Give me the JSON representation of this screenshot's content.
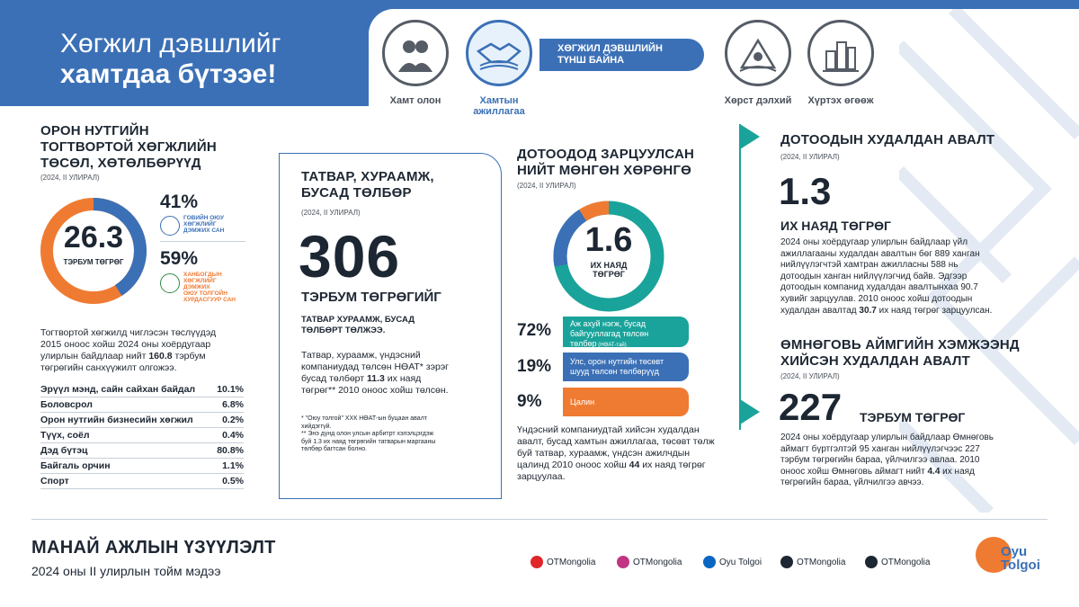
{
  "headline": {
    "line1": "Хөгжил дэвшлийг",
    "line2": "хамтдаа бүтээе!"
  },
  "pillars": {
    "items": [
      {
        "label": "Хамт олон",
        "icon": "people-icon"
      },
      {
        "label": "Хамтын ажиллагаа",
        "icon": "handshake-icon"
      },
      {
        "label": "Хөрст дэлхий",
        "icon": "nature-icon"
      },
      {
        "label": "Хүртэх өгөөж",
        "icon": "city-icon"
      }
    ],
    "active_label_line1": "Хамтын",
    "active_label_line2": "ажиллагаа",
    "banner_line1": "ХӨГЖИЛ ДЭВШЛИЙН",
    "banner_line2": "ТҮНШ БАЙНА"
  },
  "projects": {
    "title_line1": "ОРОН НУТГИЙН",
    "title_line2": "ТОГТВОРТОЙ ХӨГЖЛИЙН",
    "title_line3": "ТӨСӨЛ, ХӨТӨЛБӨРҮҮД",
    "period": "(2024, II УЛИРАЛ)",
    "total_value": "26.3",
    "total_unit": "ТЭРБУМ ТӨГРӨГ",
    "share_1_pct": "41%",
    "share_1_value": 41,
    "share_1_label_line1": "ГОВИЙН ОЮУ",
    "share_1_label_line2": "ХӨГЖЛИЙГ",
    "share_1_label_line3": "ДЭМЖИХ САН",
    "share_2_pct": "59%",
    "share_2_value": 59,
    "share_2_label_line1": "ХАНБОГДЫН",
    "share_2_label_line2": "ХӨГЖЛИЙГ",
    "share_2_label_line3": "ДЭМЖИХ",
    "share_2_label_line4": "ОЮУ ТОЛГОЙН",
    "share_2_label_line5": "ХУРДАСГУУР САН",
    "desc_line1": "Тогтвортой хөгжилд чиглэсэн төслүүдэд",
    "desc_line2": "2015 оноос хойш 2024 оны хоёрдугаар",
    "desc_line3_pre": "улирлын байдлаар нийт ",
    "desc_line3_bold": "160.8",
    "desc_line3_post": " тэрбум",
    "desc_line4": "төгрөгийн санхүүжилт олгожээ.",
    "rows": [
      {
        "name": "Эрүүл мэнд, сайн сайхан байдал",
        "value": "10.1%"
      },
      {
        "name": "Боловсрол",
        "value": "6.8%"
      },
      {
        "name": "Орон нутгийн бизнесийн хөгжил",
        "value": "0.2%"
      },
      {
        "name": "Түүх, соёл",
        "value": "0.4%"
      },
      {
        "name": "Дэд бүтэц",
        "value": "80.8%"
      },
      {
        "name": "Байгаль орчин",
        "value": "1.1%"
      },
      {
        "name": "Спорт",
        "value": "0.5%"
      }
    ]
  },
  "taxes": {
    "title_line1": "ТАТВАР, ХУРААМЖ,",
    "title_line2": "БУСАД ТӨЛБӨР",
    "period": "(2024, II УЛИРАЛ)",
    "value": "306",
    "unit": "ТЭРБУМ ТӨГРӨГИЙГ",
    "sub_line1": "ТАТВАР ХУРААМЖ, БУСАД",
    "sub_line2": "ТӨЛБӨРТ ТӨЛЖЭЭ.",
    "desc_line1": "Татвар, хураамж, үндэсний",
    "desc_line2": "компаниудад төлсөн НӨАТ* зэрэг",
    "desc_line3_pre": "бусад төлбөрт ",
    "desc_line3_bold": "11.3",
    "desc_line3_post": " их наяд",
    "desc_line4": "төгрөг** 2010 оноос хойш төлсөн.",
    "note1_line1": "* \"Оюу толгой\" ХХК НӨАТ-ын буцаан авалт",
    "note1_line2": "хийдэггүй.",
    "note2_line1": "** Энэ дүнд олон улсын арбитрт хэлэлцэгдэж",
    "note2_line2": "буй 1.3 их наяд төгрөгийн татварын маргааны",
    "note2_line3": "төлбөр багтсан болно."
  },
  "domestic_spend": {
    "title_line1": "ДОТООДОД ЗАРЦУУЛСАН",
    "title_line2": "НИЙТ МӨНГӨН ХӨРӨНГӨ",
    "period": "(2024, II УЛИРАЛ)",
    "value": "1.6",
    "unit_line1": "ИХ НАЯД",
    "unit_line2": "ТӨГРӨГ",
    "bars": [
      {
        "pct": "72%",
        "value": 72,
        "line1": "Аж ахуй нэгж, бусад",
        "line2": "байгууллагад төлсөн",
        "line3": "төлбөр",
        "line3_small": " (НӨАТ-тай)",
        "color": "#1aa39a"
      },
      {
        "pct": "19%",
        "value": 19,
        "line1": "Улс, орон нутгийн төсөвт",
        "line2": "шууд төлсөн төлбөрүүд",
        "line3": "",
        "line3_small": "",
        "color": "#3b70b6"
      },
      {
        "pct": "9%",
        "value": 9,
        "line1": "Цалин",
        "line2": "",
        "line3": "",
        "line3_small": "",
        "color": "#ef7b32"
      }
    ],
    "desc_line1": "Үндэсний компаниудтай хийсэн худалдан",
    "desc_line2": "авалт, бусад хамтын ажиллагаа, төсөвт төлж",
    "desc_line3": "буй татвар, хураамж, үндсэн ажилчдын",
    "desc_line4_pre": "цалинд 2010 оноос хойш ",
    "desc_line4_bold": "44",
    "desc_line4_post": " их наяд төгрөг",
    "desc_line5": "зарцуулаа."
  },
  "domestic_procurement": {
    "title": "ДОТООДЫН ХУДАЛДАН АВАЛТ",
    "period": "(2024, II УЛИРАЛ)",
    "value": "1.3",
    "unit": "ИХ НАЯД ТӨГРӨГ",
    "desc_line1": "2024 оны хоёрдугаар улирлын байдлаар үйл",
    "desc_line2": "ажиллагааны худалдан авалтын бөг 889 ханган",
    "desc_line3": "нийлүүлэгчтэй хамтран ажилласны 588 нь",
    "desc_line4": "дотоодын ханган нийлүүлэгчид байв. Эдгээр",
    "desc_line5": "дотоодын компанид худалдан авалтынхаа 90.7",
    "desc_line6": "хувийг зарцуулав. 2010 оноос хойш дотоодын",
    "desc_line7_pre": "худалдан авалтад ",
    "desc_line7_bold": "30.7",
    "desc_line7_post": " их наяд төгрөг зарцуулсан."
  },
  "umnugovi_procurement": {
    "title_line1": "ӨМНӨГОВЬ АЙМГИЙН ХЭМЖЭЭНД",
    "title_line2": "ХИЙСЭН ХУДАЛДАН АВАЛТ",
    "period": "(2024, II УЛИРАЛ)",
    "value": "227",
    "unit": "ТЭРБУМ ТӨГРӨГ",
    "desc_line1": "2024 оны хоёрдугаар улирлын байдлаар Өмнөговь",
    "desc_line2": "аймагт бүртгэлтэй 95 ханган нийлүүлэгчээс 227",
    "desc_line3": "тэрбум төгрөгийн бараа, үйлчилгээ авлаа. 2010",
    "desc_line4_pre": "оноос хойш Өмнөговь аймагт нийт ",
    "desc_line4_bold": "4.4",
    "desc_line4_post": " их наяд",
    "desc_line5": "төгрөгийн бараа, үйлчилгээ авчээ."
  },
  "footer": {
    "title": "МАНАЙ АЖЛЫН ҮЗҮҮЛЭЛТ",
    "subtitle": "2024 оны II улирлын тойм мэдээ",
    "socials": [
      {
        "label": "OTMongolia",
        "icon": "youtube-icon",
        "color": "#e0262a"
      },
      {
        "label": "OTMongolia",
        "icon": "instagram-icon",
        "color": "#c13584"
      },
      {
        "label": "Oyu Tolgoi",
        "icon": "linkedin-icon",
        "color": "#0a66c2"
      },
      {
        "label": "OTMongolia",
        "icon": "threads-icon",
        "color": "#1d2733"
      },
      {
        "label": "OTMongolia",
        "icon": "twitter-icon",
        "color": "#1d2733"
      }
    ],
    "logo_line1": "Oyu",
    "logo_line2": "Tolgoi"
  },
  "colors": {
    "blue": "#3b70b6",
    "teal": "#1aa39a",
    "orange": "#ef7b32",
    "dark": "#1d2733"
  }
}
